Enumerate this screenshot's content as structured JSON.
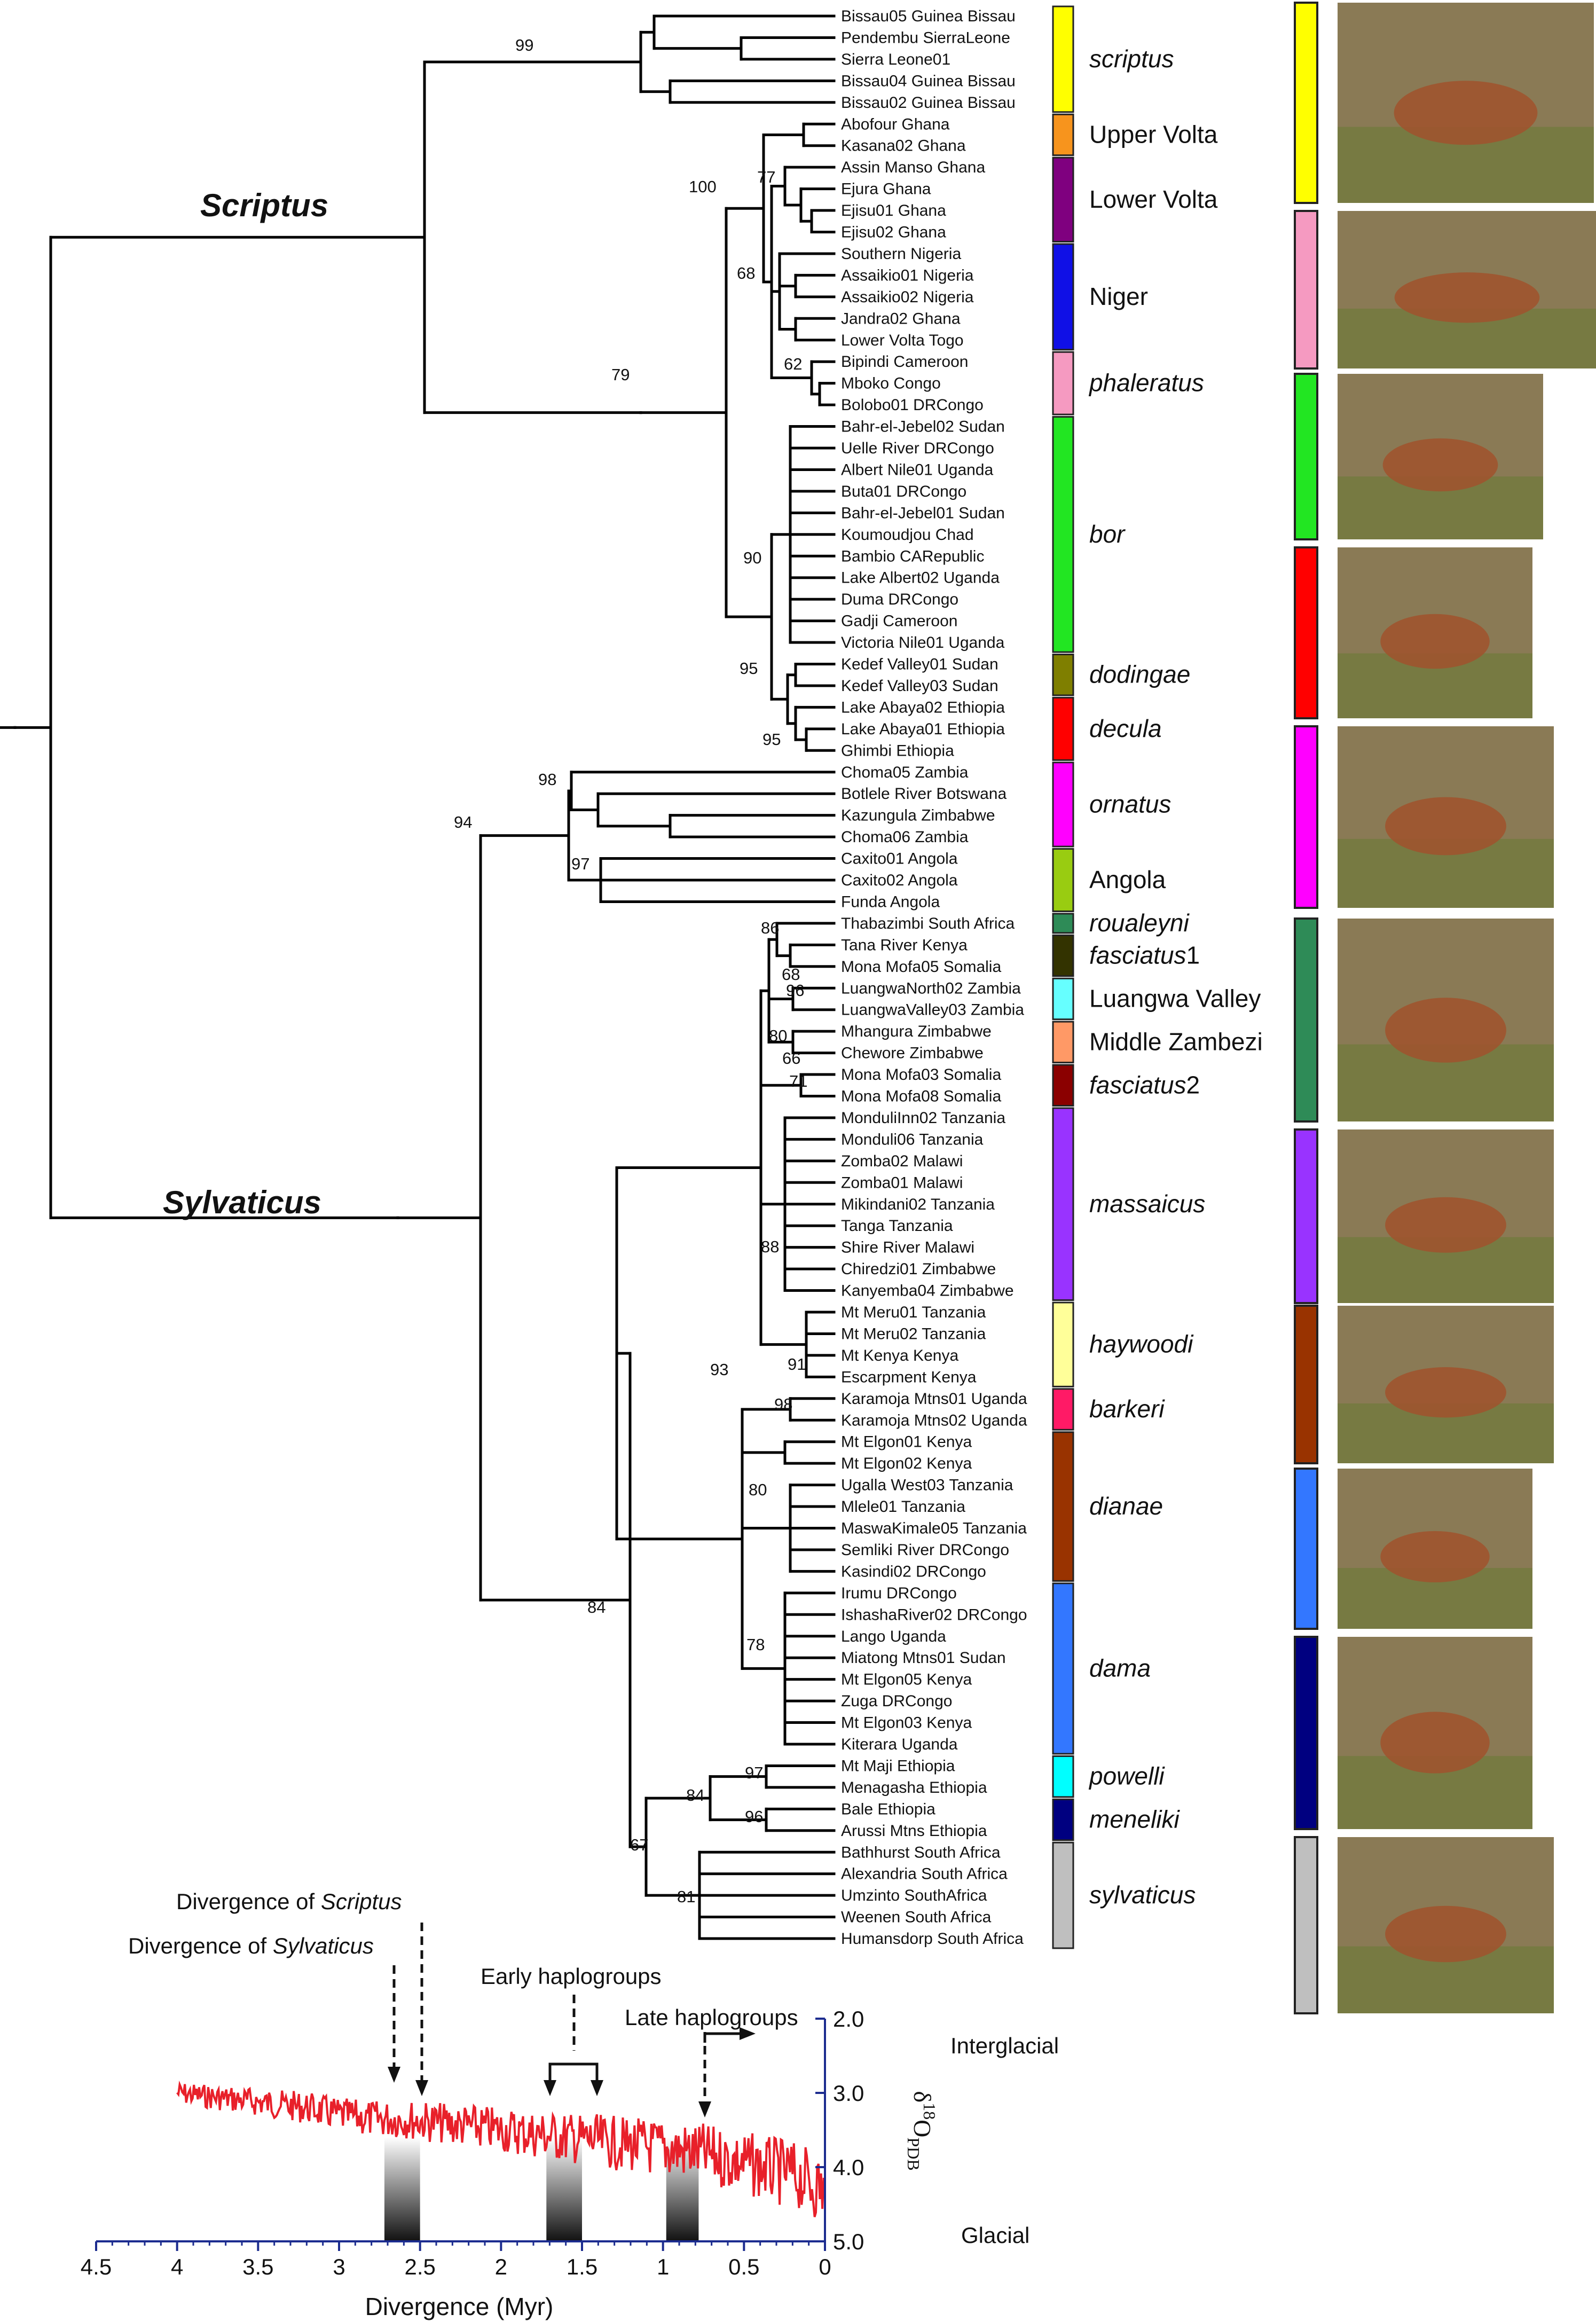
{
  "clade_labels": {
    "scriptus_group": "Scriptus",
    "sylvaticus_group": "Sylvaticus"
  },
  "tips": [
    "Bissau05 Guinea Bissau",
    "Pendembu SierraLeone",
    "Sierra Leone01",
    "Bissau04 Guinea Bissau",
    "Bissau02 Guinea Bissau",
    "Abofour Ghana",
    "Kasana02 Ghana",
    "Assin Manso Ghana",
    "Ejura Ghana",
    "Ejisu01 Ghana",
    "Ejisu02 Ghana",
    "Southern Nigeria",
    "Assaikio01 Nigeria",
    "Assaikio02 Nigeria",
    "Jandra02 Ghana",
    "Lower Volta Togo",
    "Bipindi Cameroon",
    "Mboko Congo",
    "Bolobo01 DRCongo",
    "Bahr-el-Jebel02 Sudan",
    "Uelle River DRCongo",
    "Albert Nile01 Uganda",
    "Buta01 DRCongo",
    "Bahr-el-Jebel01 Sudan",
    "Koumoudjou Chad",
    "Bambio CARepublic",
    "Lake Albert02 Uganda",
    "Duma DRCongo",
    "Gadji Cameroon",
    "Victoria Nile01 Uganda",
    "Kedef Valley01 Sudan",
    "Kedef Valley03 Sudan",
    "Lake Abaya02 Ethiopia",
    "Lake Abaya01 Ethiopia",
    "Ghimbi Ethiopia",
    "Choma05 Zambia",
    "Botlele River Botswana",
    "Kazungula Zimbabwe",
    "Choma06 Zambia",
    "Caxito01 Angola",
    "Caxito02 Angola",
    "Funda Angola",
    "Thabazimbi South Africa",
    "Tana River Kenya",
    "Mona Mofa05 Somalia",
    "LuangwaNorth02 Zambia",
    "LuangwaValley03 Zambia",
    "Mhangura Zimbabwe",
    "Chewore Zimbabwe",
    "Mona Mofa03 Somalia",
    "Mona Mofa08 Somalia",
    "MonduliInn02 Tanzania",
    "Monduli06 Tanzania",
    "Zomba02 Malawi",
    "Zomba01 Malawi",
    "Mikindani02 Tanzania",
    "Tanga Tanzania",
    "Shire River Malawi",
    "Chiredzi01 Zimbabwe",
    "Kanyemba04 Zimbabwe",
    "Mt Meru01 Tanzania",
    "Mt Meru02 Tanzania",
    "Mt Kenya Kenya",
    "Escarpment Kenya",
    "Karamoja Mtns01 Uganda",
    "Karamoja Mtns02 Uganda",
    "Mt Elgon01 Kenya",
    "Mt Elgon02 Kenya",
    "Ugalla West03 Tanzania",
    "Mlele01 Tanzania",
    "MaswaKimale05 Tanzania",
    "Semliki River DRCongo",
    "Kasindi02 DRCongo",
    "Irumu DRCongo",
    "IshashaRiver02 DRCongo",
    "Lango Uganda",
    "Miatong Mtns01 Sudan",
    "Mt Elgon05 Kenya",
    "Zuga DRCongo",
    "Mt Elgon03 Kenya",
    "Kiterara Uganda",
    "Mt Maji Ethiopia",
    "Menagasha Ethiopia",
    "Bale Ethiopia",
    "Arussi Mtns Ethiopia",
    "Bathhurst South Africa",
    "Alexandria South Africa",
    "Umzinto SouthAfrica",
    "Weenen South Africa",
    "Humansdorp South Africa"
  ],
  "groups": [
    {
      "label": "scriptus",
      "italic": true,
      "suffix": "",
      "first": 0,
      "last": 4,
      "color": "#ffff00"
    },
    {
      "label": "Upper Volta",
      "italic": false,
      "suffix": "",
      "first": 5,
      "last": 6,
      "color": "#f7941d"
    },
    {
      "label": "Lower Volta",
      "italic": false,
      "suffix": "",
      "first": 7,
      "last": 10,
      "color": "#7f007f"
    },
    {
      "label": "Niger",
      "italic": false,
      "suffix": "",
      "first": 11,
      "last": 15,
      "color": "#1010e6"
    },
    {
      "label": "phaleratus",
      "italic": true,
      "suffix": "",
      "first": 16,
      "last": 18,
      "color": "#f59ac1"
    },
    {
      "label": "bor",
      "italic": true,
      "suffix": "",
      "first": 19,
      "last": 29,
      "color": "#22e622"
    },
    {
      "label": "dodingae",
      "italic": true,
      "suffix": "",
      "first": 30,
      "last": 31,
      "color": "#7f7f00"
    },
    {
      "label": "decula",
      "italic": true,
      "suffix": "",
      "first": 32,
      "last": 34,
      "color": "#ff0000"
    },
    {
      "label": "ornatus",
      "italic": true,
      "suffix": "",
      "first": 35,
      "last": 38,
      "color": "#ff00ff"
    },
    {
      "label": "Angola",
      "italic": false,
      "suffix": "",
      "first": 39,
      "last": 41,
      "color": "#99cc11"
    },
    {
      "label": "roualeyni",
      "italic": true,
      "suffix": "",
      "first": 42,
      "last": 42,
      "color": "#2e8b57"
    },
    {
      "label": "fasciatus",
      "italic": true,
      "suffix": "1",
      "first": 43,
      "last": 44,
      "color": "#333300"
    },
    {
      "label": "Luangwa Valley",
      "italic": false,
      "suffix": "",
      "first": 45,
      "last": 46,
      "color": "#66ffff"
    },
    {
      "label": "Middle Zambezi",
      "italic": false,
      "suffix": "",
      "first": 47,
      "last": 48,
      "color": "#ff9966"
    },
    {
      "label": "fasciatus",
      "italic": true,
      "suffix": "2",
      "first": 49,
      "last": 50,
      "color": "#8b0000"
    },
    {
      "label": "massaicus",
      "italic": true,
      "suffix": "",
      "first": 51,
      "last": 59,
      "color": "#9933ff"
    },
    {
      "label": "haywoodi",
      "italic": true,
      "suffix": "",
      "first": 60,
      "last": 63,
      "color": "#ffff99"
    },
    {
      "label": "barkeri",
      "italic": true,
      "suffix": "",
      "first": 64,
      "last": 65,
      "color": "#ff1a66"
    },
    {
      "label": "dianae",
      "italic": true,
      "suffix": "",
      "first": 66,
      "last": 72,
      "color": "#993300"
    },
    {
      "label": "dama",
      "italic": true,
      "suffix": "",
      "first": 73,
      "last": 80,
      "color": "#3377ff"
    },
    {
      "label": "powelli",
      "italic": true,
      "suffix": "",
      "first": 81,
      "last": 82,
      "color": "#00ffff"
    },
    {
      "label": "meneliki",
      "italic": true,
      "suffix": "",
      "first": 83,
      "last": 84,
      "color": "#000080"
    },
    {
      "label": "sylvaticus",
      "italic": true,
      "suffix": "",
      "first": 85,
      "last": 89,
      "color": "#bfbfbf"
    }
  ],
  "bootstrap": {
    "b99": "99",
    "b100": "100",
    "b77": "77",
    "b68a": "68",
    "b62": "62",
    "b79": "79",
    "b90": "90",
    "b95a": "95",
    "b95b": "95",
    "b98a": "98",
    "b94": "94",
    "b97a": "97",
    "b86": "86",
    "b68b": "68",
    "b96a": "96",
    "b80a": "80",
    "b66": "66",
    "b71": "71",
    "b88": "88",
    "b91": "91",
    "b93": "93",
    "b98b": "98",
    "b80b": "80",
    "b78": "78",
    "b84a": "84",
    "b97b": "97",
    "b84b": "84",
    "b96b": "96",
    "b67": "67",
    "b81": "81"
  },
  "photo_strip_colors": [
    "#ffff00",
    "#f59ac1",
    "#22e622",
    "#ff0000",
    "#ff00ff",
    "#2e8b57",
    "#9933ff",
    "#993300",
    "#3377ff",
    "#000080",
    "#bfbfbf"
  ],
  "annotations": {
    "div_scriptus_pre": "Divergence of ",
    "div_scriptus_it": "Scriptus",
    "div_sylvaticus_pre": "Divergence of ",
    "div_sylvaticus_it": "Sylvaticus",
    "early": "Early haplogroups",
    "late": "Late haplogroups",
    "interglacial": "Interglacial",
    "glacial": "Glacial"
  },
  "chart_data": {
    "type": "line",
    "title": "",
    "xlabel": "Divergence (Myr)",
    "ylabel": "δ18O PDB",
    "x_ticks": [
      "4.5",
      "4",
      "3.5",
      "3",
      "2.5",
      "2",
      "1.5",
      "1",
      "0.5",
      "0"
    ],
    "y_ticks": [
      "2.0",
      "3.0",
      "4.0",
      "5.0"
    ],
    "xlim": [
      4.5,
      0
    ],
    "ylim": [
      2.0,
      5.0
    ],
    "y_inverted": true,
    "glacial_bands_myr": [
      [
        2.72,
        2.5
      ],
      [
        1.72,
        1.5
      ],
      [
        0.98,
        0.78
      ]
    ],
    "series": [
      {
        "name": "",
        "color": "#e8202a",
        "x": [
          4.0,
          3.8,
          3.6,
          3.4,
          3.2,
          3.0,
          2.8,
          2.6,
          2.4,
          2.2,
          2.0,
          1.8,
          1.6,
          1.4,
          1.2,
          1.0,
          0.8,
          0.6,
          0.4,
          0.2,
          0.0
        ],
        "y": [
          3.0,
          3.05,
          3.1,
          3.15,
          3.2,
          3.3,
          3.35,
          3.35,
          3.4,
          3.45,
          3.5,
          3.55,
          3.6,
          3.65,
          3.7,
          3.75,
          3.8,
          3.9,
          4.0,
          4.1,
          4.3
        ]
      }
    ]
  }
}
